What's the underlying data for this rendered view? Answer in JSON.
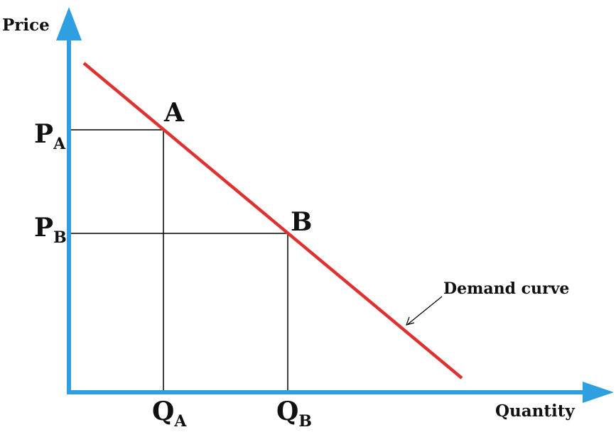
{
  "diagram": {
    "y_axis_label": "Price",
    "x_axis_label": "Quantity",
    "curve_label": "Demand curve",
    "point_a": {
      "label": "A",
      "price_main": "P",
      "price_sub": "A",
      "qty_main": "Q",
      "qty_sub": "A"
    },
    "point_b": {
      "label": "B",
      "price_main": "P",
      "price_sub": "B",
      "qty_main": "Q",
      "qty_sub": "B"
    },
    "colors": {
      "axis": "#2e9fe0",
      "curve": "#e03131",
      "guide": "#000000"
    }
  }
}
